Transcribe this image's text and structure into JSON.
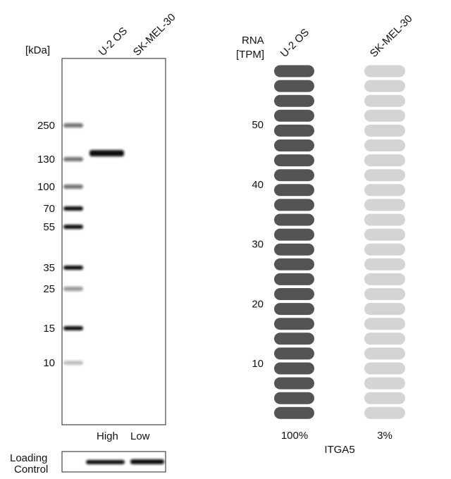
{
  "western_blot": {
    "unit_label": "[kDa]",
    "lanes": [
      "U-2 OS",
      "SK-MEL-30"
    ],
    "markers": [
      250,
      130,
      100,
      70,
      55,
      35,
      25,
      15,
      10
    ],
    "levels": [
      "High",
      "Low"
    ],
    "loading_control": [
      "Loading",
      "Control"
    ]
  },
  "rna": {
    "axis_label": [
      "RNA",
      "[TPM]"
    ],
    "samples": [
      "U-2 OS",
      "SK-MEL-30"
    ],
    "yticks": [
      10,
      20,
      30,
      40,
      50
    ],
    "percentages": [
      "100%",
      "3%"
    ],
    "gene": "ITGA5"
  }
}
